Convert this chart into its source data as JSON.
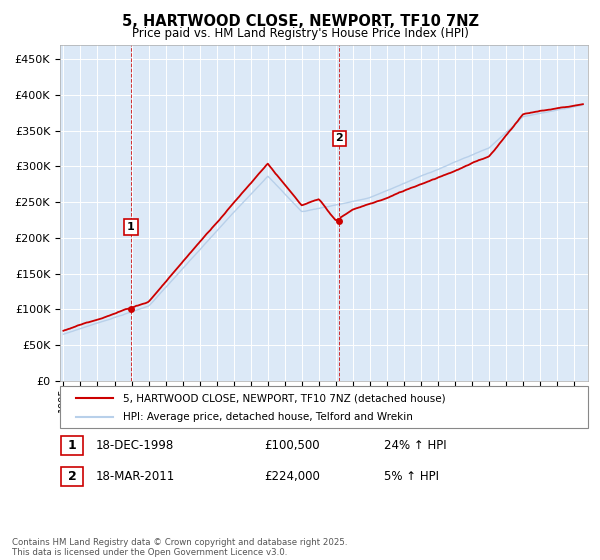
{
  "title": "5, HARTWOOD CLOSE, NEWPORT, TF10 7NZ",
  "subtitle": "Price paid vs. HM Land Registry's House Price Index (HPI)",
  "ytick_values": [
    0,
    50000,
    100000,
    150000,
    200000,
    250000,
    300000,
    350000,
    400000,
    450000
  ],
  "ylim": [
    0,
    470000
  ],
  "xlim_start": 1994.8,
  "xlim_end": 2025.8,
  "xticks": [
    1995,
    1996,
    1997,
    1998,
    1999,
    2000,
    2001,
    2002,
    2003,
    2004,
    2005,
    2006,
    2007,
    2008,
    2009,
    2010,
    2011,
    2012,
    2013,
    2014,
    2015,
    2016,
    2017,
    2018,
    2019,
    2020,
    2021,
    2022,
    2023,
    2024,
    2025
  ],
  "hpi_color": "#b8d0ea",
  "price_color": "#cc0000",
  "background_color": "#dce9f7",
  "grid_color": "#ffffff",
  "sale1_x": 1998.96,
  "sale1_y": 100500,
  "sale1_label": "1",
  "sale1_date": "18-DEC-1998",
  "sale1_price": "£100,500",
  "sale1_hpi": "24% ↑ HPI",
  "sale2_x": 2011.21,
  "sale2_y": 224000,
  "sale2_label": "2",
  "sale2_date": "18-MAR-2011",
  "sale2_price": "£224,000",
  "sale2_hpi": "5% ↑ HPI",
  "legend_line1": "5, HARTWOOD CLOSE, NEWPORT, TF10 7NZ (detached house)",
  "legend_line2": "HPI: Average price, detached house, Telford and Wrekin",
  "footer": "Contains HM Land Registry data © Crown copyright and database right 2025.\nThis data is licensed under the Open Government Licence v3.0."
}
